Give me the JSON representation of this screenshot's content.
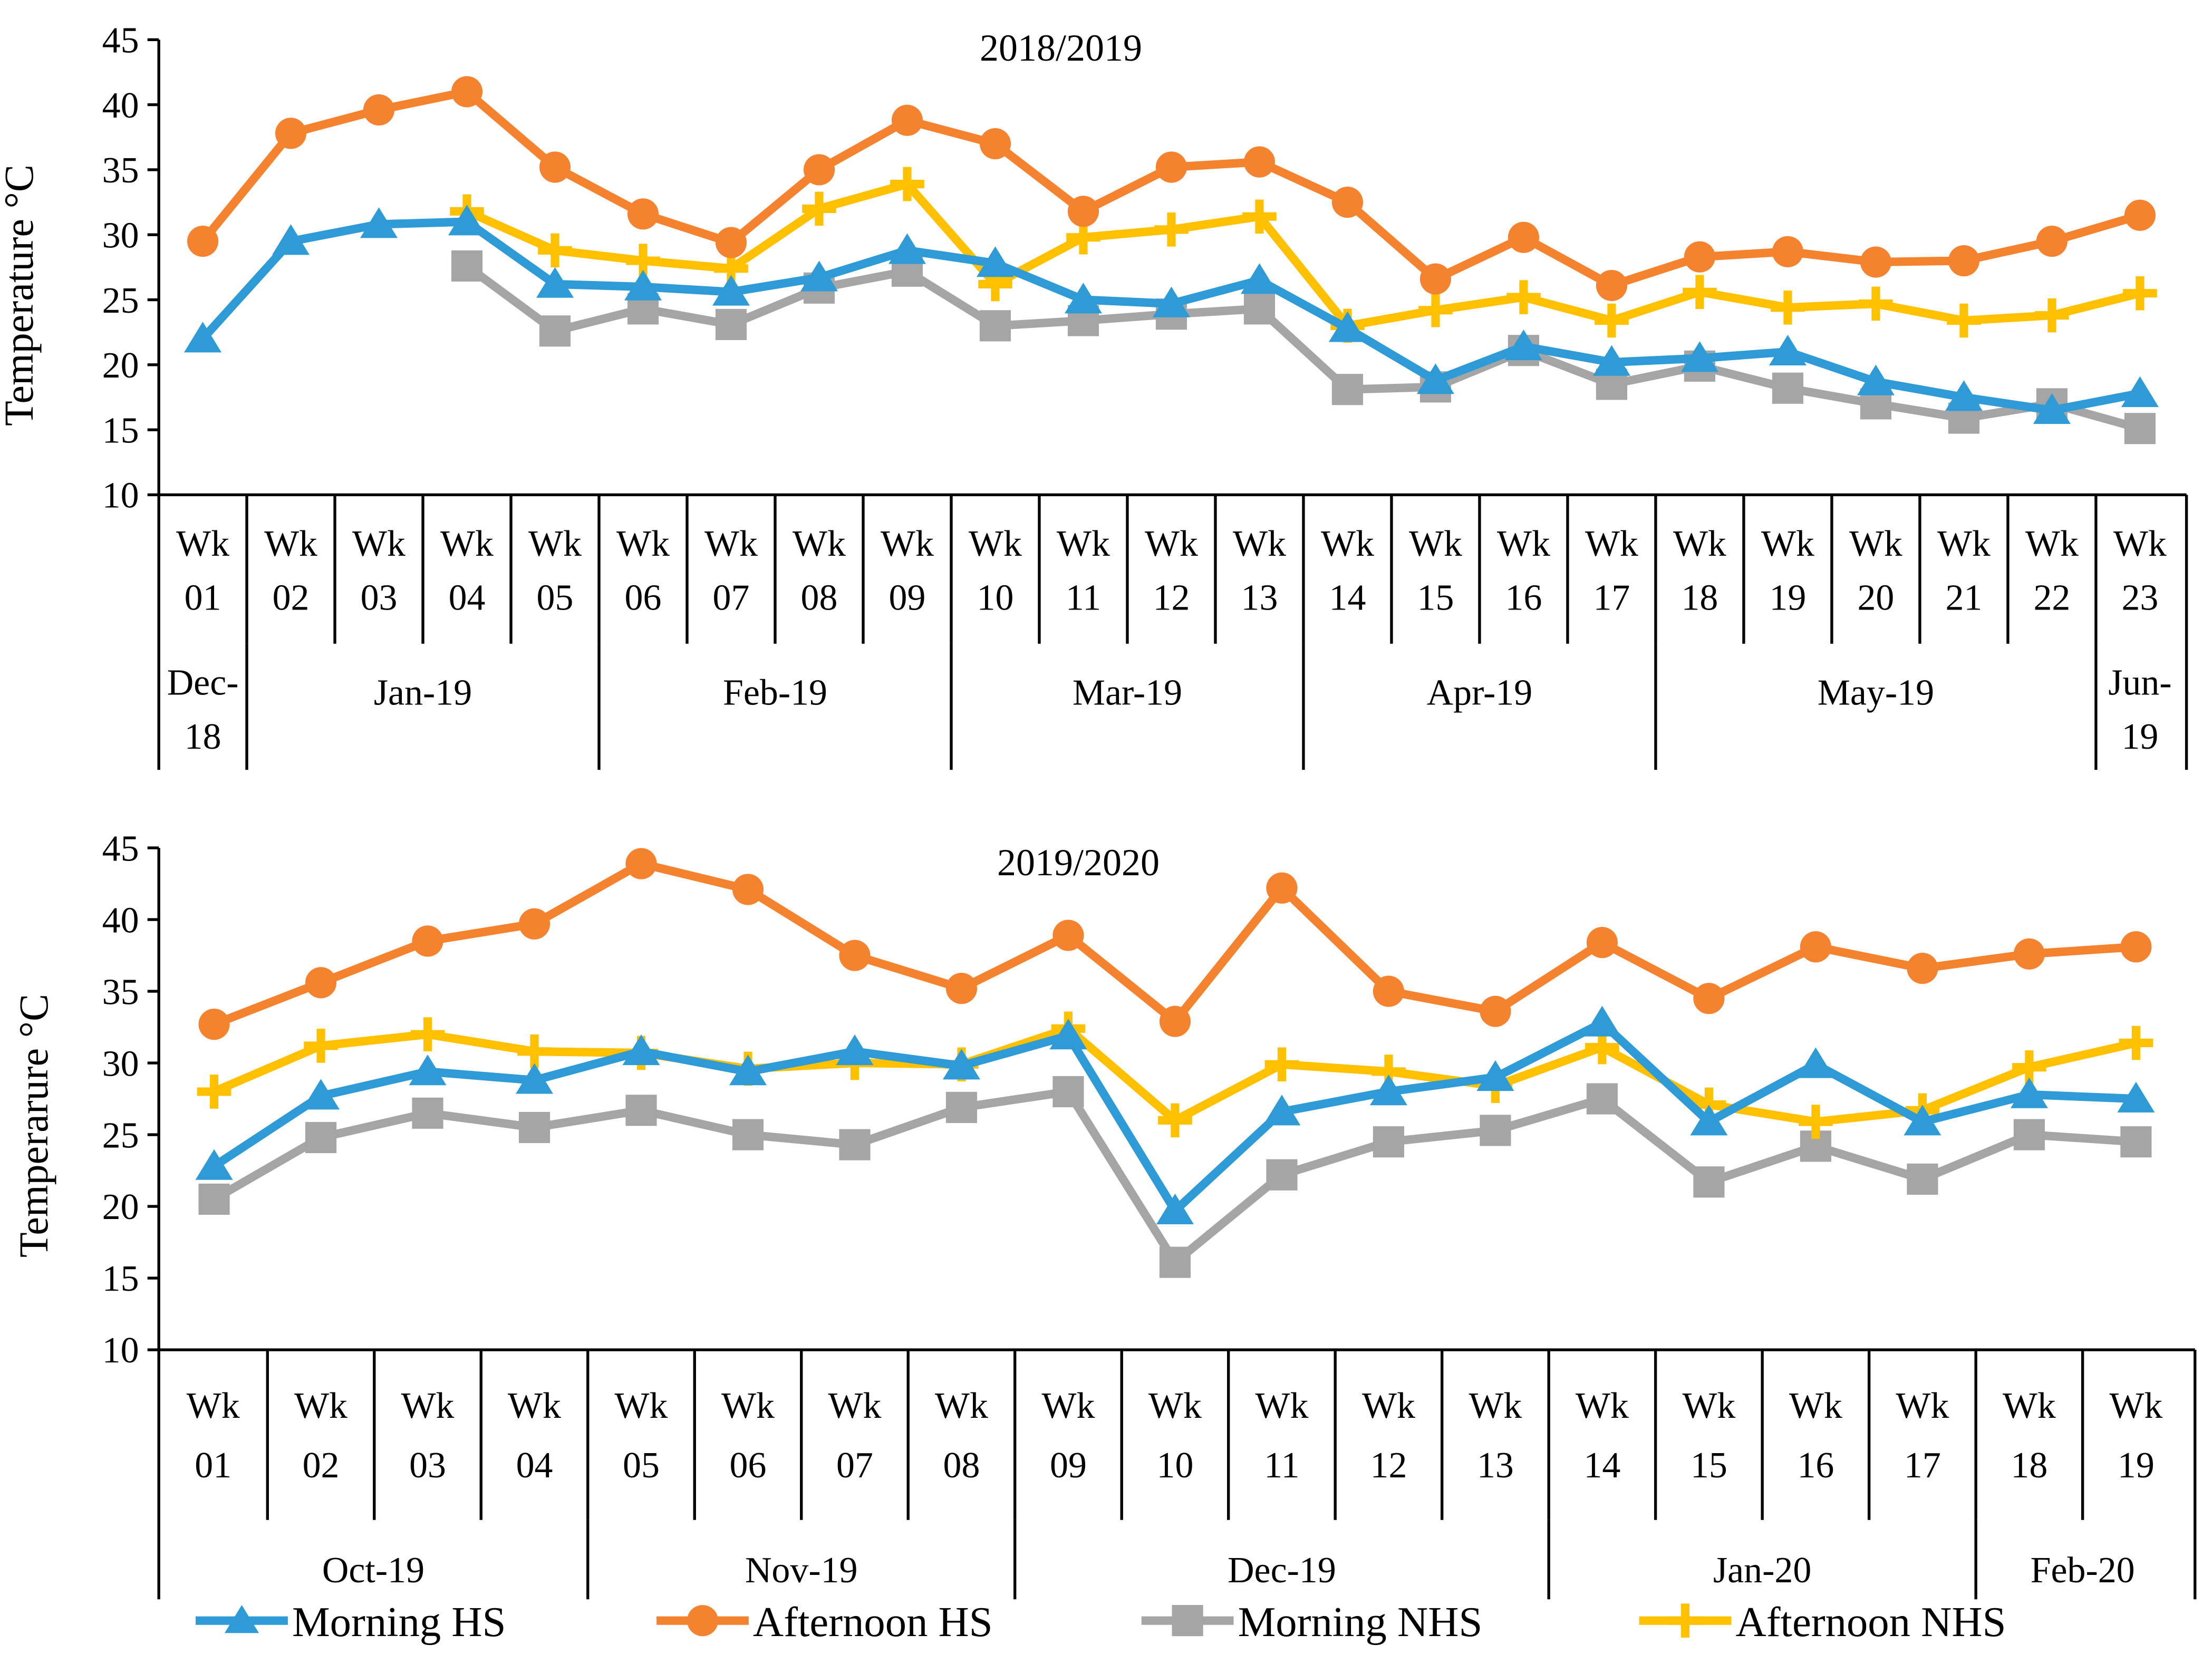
{
  "legend": [
    {
      "key": "morning_hs",
      "label": "Morning HS",
      "color": "#2E9BD6",
      "marker": "triangle"
    },
    {
      "key": "afternoon_hs",
      "label": "Afternoon HS",
      "color": "#F5822E",
      "marker": "circle"
    },
    {
      "key": "morning_nhs",
      "label": "Morning NHS",
      "color": "#A5A5A5",
      "marker": "square"
    },
    {
      "key": "afternoon_nhs",
      "label": "Afternoon NHS",
      "color": "#FFC000",
      "marker": "plus"
    }
  ],
  "chart_data": [
    {
      "type": "line",
      "title": "2018/2019",
      "ylabel": "Temperature °C",
      "ylim": [
        10,
        45
      ],
      "yticks": [
        "10",
        "15",
        "20",
        "25",
        "30",
        "35",
        "40",
        "45"
      ],
      "x": [
        "Wk 01",
        "Wk 02",
        "Wk 03",
        "Wk 04",
        "Wk 05",
        "Wk 06",
        "Wk 07",
        "Wk 08",
        "Wk 09",
        "Wk 10",
        "Wk 11",
        "Wk 12",
        "Wk 13",
        "Wk 14",
        "Wk 15",
        "Wk 16",
        "Wk 17",
        "Wk 18",
        "Wk 19",
        "Wk 20",
        "Wk 21",
        "Wk 22",
        "Wk 23"
      ],
      "week_labels": [
        [
          "Wk",
          "01"
        ],
        [
          "Wk",
          "02"
        ],
        [
          "Wk",
          "03"
        ],
        [
          "Wk",
          "04"
        ],
        [
          "Wk",
          "05"
        ],
        [
          "Wk",
          "06"
        ],
        [
          "Wk",
          "07"
        ],
        [
          "Wk",
          "08"
        ],
        [
          "Wk",
          "09"
        ],
        [
          "Wk",
          "10"
        ],
        [
          "Wk",
          "11"
        ],
        [
          "Wk",
          "12"
        ],
        [
          "Wk",
          "13"
        ],
        [
          "Wk",
          "14"
        ],
        [
          "Wk",
          "15"
        ],
        [
          "Wk",
          "16"
        ],
        [
          "Wk",
          "17"
        ],
        [
          "Wk",
          "18"
        ],
        [
          "Wk",
          "19"
        ],
        [
          "Wk",
          "20"
        ],
        [
          "Wk",
          "21"
        ],
        [
          "Wk",
          "22"
        ],
        [
          "Wk",
          "23"
        ]
      ],
      "months": [
        {
          "label": [
            "Dec-",
            "18"
          ],
          "span": 1
        },
        {
          "label": [
            "Jan-19"
          ],
          "span": 4
        },
        {
          "label": [
            "Feb-19"
          ],
          "span": 4
        },
        {
          "label": [
            "Mar-19"
          ],
          "span": 4
        },
        {
          "label": [
            "Apr-19"
          ],
          "span": 4
        },
        {
          "label": [
            "May-19"
          ],
          "span": 5
        },
        {
          "label": [
            "Jun-",
            "19"
          ],
          "span": 1
        }
      ],
      "series": [
        {
          "name": "Morning HS",
          "key": "morning_hs",
          "values": [
            22,
            29.5,
            30.8,
            31,
            26.2,
            26,
            25.6,
            26.7,
            28.8,
            27.8,
            25,
            24.7,
            26.5,
            22.8,
            18.8,
            21.4,
            20.2,
            20.5,
            21,
            18.7,
            17.5,
            16.5,
            17.8
          ]
        },
        {
          "name": "Afternoon HS",
          "key": "afternoon_hs",
          "values": [
            29.5,
            37.8,
            39.6,
            41,
            35.2,
            31.6,
            29.4,
            35,
            38.8,
            37,
            31.8,
            35.2,
            35.6,
            32.5,
            26.6,
            29.8,
            26.1,
            28.3,
            28.7,
            27.9,
            28,
            29.5,
            31.5
          ]
        },
        {
          "name": "Morning NHS",
          "key": "morning_nhs",
          "values": [
            null,
            null,
            null,
            27.6,
            22.6,
            24.3,
            23.1,
            25.9,
            27.2,
            23,
            23.4,
            23.9,
            24.3,
            18.1,
            18.3,
            21.1,
            18.5,
            19.9,
            18.2,
            17,
            15.9,
            17,
            15.1
          ]
        },
        {
          "name": "Afternoon NHS",
          "key": "afternoon_nhs",
          "values": [
            null,
            null,
            null,
            31.8,
            28.8,
            28,
            27.4,
            32,
            33.9,
            26.2,
            29.8,
            30.4,
            31.4,
            23,
            24.2,
            25.2,
            23.4,
            25.6,
            24.4,
            24.7,
            23.4,
            23.8,
            25.5
          ]
        }
      ]
    },
    {
      "type": "line",
      "title": "2019/2020",
      "ylabel": "Temperarure °C",
      "ylim": [
        10,
        45
      ],
      "yticks": [
        "10",
        "15",
        "20",
        "25",
        "30",
        "35",
        "40",
        "45"
      ],
      "x": [
        "Wk 01",
        "Wk 02",
        "Wk 03",
        "Wk 04",
        "Wk 05",
        "Wk 06",
        "Wk 07",
        "Wk 08",
        "Wk 09",
        "Wk 10",
        "Wk 11",
        "Wk 12",
        "Wk 13",
        "Wk 14",
        "Wk 15",
        "Wk 16",
        "Wk 17",
        "Wk 18",
        "Wk 19"
      ],
      "week_labels": [
        [
          "Wk",
          "01"
        ],
        [
          "Wk",
          "02"
        ],
        [
          "Wk",
          "03"
        ],
        [
          "Wk",
          "04"
        ],
        [
          "Wk",
          "05"
        ],
        [
          "Wk",
          "06"
        ],
        [
          "Wk",
          "07"
        ],
        [
          "Wk",
          "08"
        ],
        [
          "Wk",
          "09"
        ],
        [
          "Wk",
          "10"
        ],
        [
          "Wk",
          "11"
        ],
        [
          "Wk",
          "12"
        ],
        [
          "Wk",
          "13"
        ],
        [
          "Wk",
          "14"
        ],
        [
          "Wk",
          "15"
        ],
        [
          "Wk",
          "16"
        ],
        [
          "Wk",
          "17"
        ],
        [
          "Wk",
          "18"
        ],
        [
          "Wk",
          "19"
        ]
      ],
      "months": [
        {
          "label": [
            "Oct-19"
          ],
          "span": 4
        },
        {
          "label": [
            "Nov-19"
          ],
          "span": 4
        },
        {
          "label": [
            "Dec-19"
          ],
          "span": 5
        },
        {
          "label": [
            "Jan-20"
          ],
          "span": 4
        },
        {
          "label": [
            "Feb-20"
          ],
          "span": 2
        }
      ],
      "series": [
        {
          "name": "Morning HS",
          "key": "morning_hs",
          "values": [
            22.8,
            27.7,
            29.4,
            28.8,
            30.8,
            29.4,
            30.8,
            29.8,
            31.9,
            19.7,
            26.6,
            28,
            29,
            32.8,
            25.9,
            29.9,
            25.9,
            27.8,
            27.5
          ]
        },
        {
          "name": "Afternoon HS",
          "key": "afternoon_hs",
          "values": [
            32.7,
            35.6,
            38.5,
            39.7,
            43.9,
            42.1,
            37.5,
            35.2,
            38.9,
            32.9,
            42.2,
            35,
            33.6,
            38.4,
            34.5,
            38.1,
            36.6,
            37.6,
            38.1
          ]
        },
        {
          "name": "Morning NHS",
          "key": "morning_nhs",
          "values": [
            20.5,
            24.8,
            26.5,
            25.5,
            26.7,
            25,
            24.3,
            26.9,
            28,
            16.1,
            22.2,
            24.5,
            25.3,
            27.5,
            21.7,
            24.2,
            21.9,
            25,
            24.5
          ]
        },
        {
          "name": "Afternoon NHS",
          "key": "afternoon_nhs",
          "values": [
            28,
            31.2,
            32,
            30.8,
            30.7,
            29.6,
            30,
            29.9,
            32.4,
            26,
            29.9,
            29.4,
            28.4,
            31.1,
            27.1,
            25.9,
            26.7,
            29.7,
            31.4
          ]
        }
      ]
    }
  ]
}
